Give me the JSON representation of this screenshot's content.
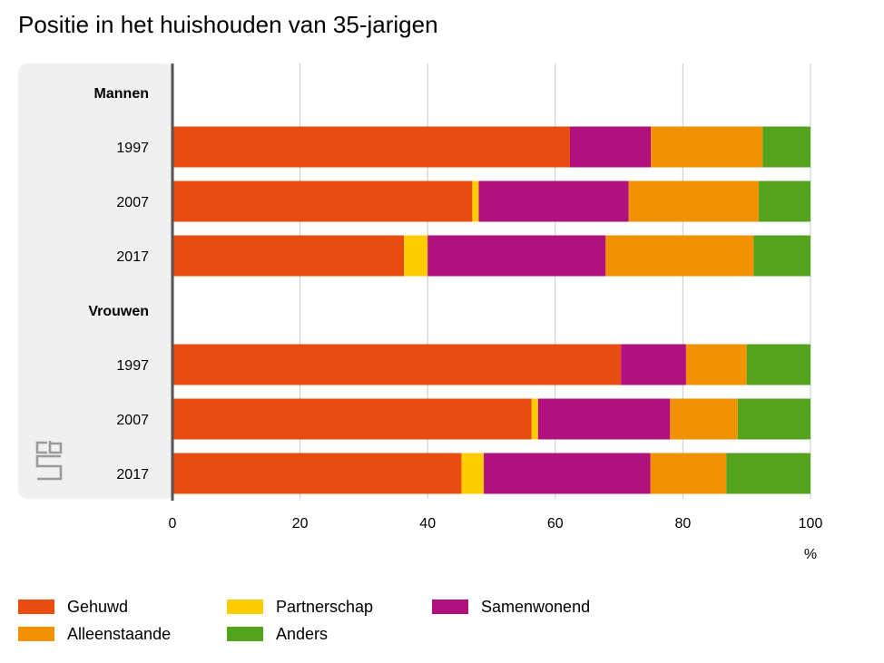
{
  "title": "Positie in het huishouden van 35-jarigen",
  "colors": {
    "panel": "#f0f0f0",
    "grid": "#c8c8c8",
    "axis": "#555555"
  },
  "logo": {
    "name": "cbs-logo",
    "text": "cbs"
  },
  "chart_data": {
    "type": "bar",
    "orientation": "horizontal",
    "stacked": true,
    "groups": [
      {
        "label": "Mannen",
        "categories": [
          "1997",
          "2007",
          "2017"
        ]
      },
      {
        "label": "Vrouwen",
        "categories": [
          "1997",
          "2007",
          "2017"
        ]
      }
    ],
    "series": [
      {
        "name": "Gehuwd",
        "color": "#e84c0e",
        "values": [
          62.3,
          47.0,
          36.3,
          70.3,
          56.3,
          45.3
        ]
      },
      {
        "name": "Partnerschap",
        "color": "#ffcc00",
        "values": [
          0.0,
          1.0,
          3.7,
          0.0,
          1.0,
          3.5
        ]
      },
      {
        "name": "Samenwonend",
        "color": "#b0117f",
        "values": [
          12.7,
          23.5,
          27.9,
          10.2,
          20.7,
          26.1
        ]
      },
      {
        "name": "Alleenstaande",
        "color": "#f39200",
        "values": [
          17.5,
          20.4,
          23.2,
          9.5,
          10.6,
          11.9
        ]
      },
      {
        "name": "Anders",
        "color": "#53a31d",
        "values": [
          7.5,
          8.1,
          8.9,
          10.0,
          11.4,
          13.2
        ]
      }
    ],
    "xlim": [
      0,
      100
    ],
    "xticks": [
      0,
      20,
      40,
      60,
      80,
      100
    ],
    "xunit": "%",
    "grid": true,
    "legend_position": "bottom"
  }
}
